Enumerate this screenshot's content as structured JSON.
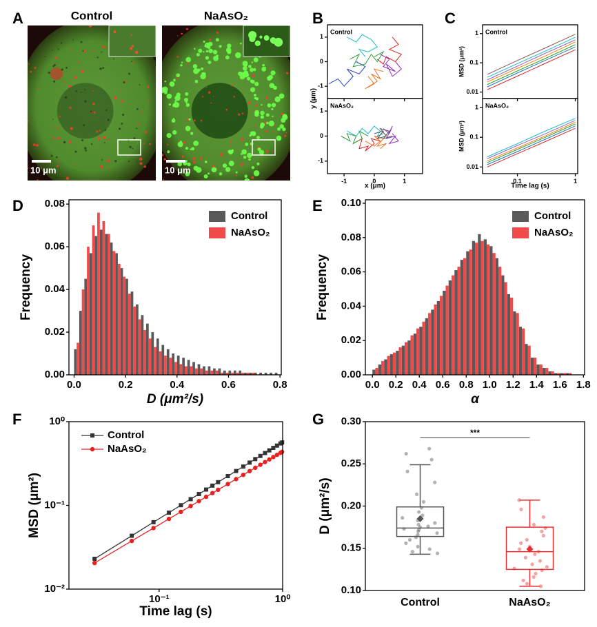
{
  "chart_data": [
    {
      "type": "image",
      "panel_label": "A",
      "images": [
        {
          "title": "Control",
          "scale_bar": "10 μm"
        },
        {
          "title": "NaAsO₂",
          "scale_bar": "10 μm"
        }
      ]
    },
    {
      "type": "trajectory",
      "panel_label": "B",
      "x_label": "x (μm)",
      "y_label": "y (μm)",
      "xlim": [
        -1.55,
        1.6
      ],
      "ylim": [
        -1.5,
        1.5
      ],
      "xticks": [
        -1,
        0,
        1
      ],
      "yticks": [
        -1,
        0,
        1
      ],
      "panels": [
        {
          "title": "Control",
          "series": [
            {
              "color": "#17becf",
              "x": [
                -0.9,
                -0.6,
                -0.4,
                -0.1,
                0.1,
                -0.2,
                -0.5,
                -0.3
              ],
              "y": [
                1.0,
                0.8,
                1.1,
                0.9,
                0.6,
                0.4,
                0.5,
                0.2
              ]
            },
            {
              "color": "#1f3fbf",
              "x": [
                -1.5,
                -1.2,
                -1.0,
                -0.7,
                -0.9,
                -0.5,
                -0.3,
                -0.6
              ],
              "y": [
                -0.9,
                -0.7,
                -1.0,
                -0.6,
                -0.3,
                -0.5,
                -0.2,
                0.0
              ]
            },
            {
              "color": "#e02020",
              "x": [
                0.6,
                0.8,
                0.5,
                0.9,
                0.7,
                0.4,
                0.3,
                0.1
              ],
              "y": [
                1.0,
                0.7,
                0.5,
                0.3,
                0.0,
                0.2,
                -0.1,
                0.1
              ]
            },
            {
              "color": "#f07020",
              "x": [
                -0.2,
                0.0,
                -0.3,
                0.1,
                -0.1,
                0.2,
                0.0,
                0.3
              ],
              "y": [
                -0.6,
                -0.9,
                -1.1,
                -0.8,
                -0.5,
                -0.7,
                -0.3,
                -0.4
              ]
            },
            {
              "color": "#9030c0",
              "x": [
                0.2,
                0.5,
                0.3,
                0.7,
                0.4,
                0.6,
                0.9,
                0.7
              ],
              "y": [
                0.3,
                0.1,
                -0.2,
                -0.4,
                -0.1,
                -0.6,
                -0.3,
                0.0
              ]
            },
            {
              "color": "#2a9d3a",
              "x": [
                -0.8,
                -0.5,
                -0.7,
                -0.3,
                -0.1,
                0.1,
                0.3,
                0.0
              ],
              "y": [
                0.1,
                0.3,
                -0.2,
                -0.1,
                0.3,
                0.0,
                0.4,
                0.2
              ]
            }
          ]
        },
        {
          "title": "NaAsO₂",
          "series": [
            {
              "color": "#17becf",
              "x": [
                -0.9,
                -0.6,
                -0.4,
                -0.2,
                0.0,
                0.2,
                0.1,
                0.3
              ],
              "y": [
                0.2,
                0.0,
                0.3,
                0.1,
                0.4,
                0.2,
                0.0,
                0.1
              ]
            },
            {
              "color": "#e02020",
              "x": [
                -0.7,
                -0.4,
                -0.5,
                -0.2,
                -0.3,
                0.0,
                -0.1,
                0.2
              ],
              "y": [
                -0.3,
                -0.1,
                -0.5,
                -0.4,
                -0.6,
                -0.3,
                -0.1,
                -0.2
              ]
            },
            {
              "color": "#9030c0",
              "x": [
                0.3,
                0.5,
                0.6,
                0.4,
                0.7,
                0.5,
                0.8,
                0.6
              ],
              "y": [
                0.3,
                0.1,
                0.4,
                -0.1,
                0.0,
                -0.3,
                -0.2,
                0.1
              ]
            },
            {
              "color": "#f07020",
              "x": [
                -0.3,
                0.0,
                0.2,
                0.0,
                0.3,
                0.1,
                0.4,
                0.2
              ],
              "y": [
                -0.2,
                -0.4,
                -0.2,
                0.0,
                -0.1,
                -0.4,
                -0.3,
                -0.5
              ]
            },
            {
              "color": "#2a9d3a",
              "x": [
                -1.1,
                -0.8,
                -0.9,
                -0.6,
                -0.7,
                -0.4,
                -0.5,
                -0.2
              ],
              "y": [
                0.0,
                -0.2,
                0.1,
                0.0,
                -0.3,
                -0.1,
                0.2,
                0.0
              ]
            },
            {
              "color": "#555555",
              "x": [
                0.0,
                0.3,
                0.1,
                0.4,
                0.2,
                0.5,
                0.3,
                0.6
              ],
              "y": [
                0.1,
                0.2,
                -0.1,
                0.0,
                0.3,
                0.2,
                -0.1,
                0.0
              ]
            }
          ]
        }
      ]
    },
    {
      "type": "multiline",
      "panel_label": "C",
      "x_label": "Time lag (s)",
      "y_label": "MSD (μm²)",
      "log_x": true,
      "log_y": true,
      "xlim": [
        0.025,
        1.1
      ],
      "ylim": [
        0.006,
        2
      ],
      "xticks": [
        0.1,
        1
      ],
      "yticks": [
        0.01,
        0.1,
        1
      ],
      "x": [
        0.03,
        0.1,
        0.3,
        1
      ],
      "panels": [
        {
          "title": "Control",
          "series": [
            {
              "color": "#d62728",
              "values": [
                0.012,
                0.035,
                0.095,
                0.28
              ]
            },
            {
              "color": "#1f77b4",
              "values": [
                0.015,
                0.045,
                0.12,
                0.35
              ]
            },
            {
              "color": "#2ca02c",
              "values": [
                0.018,
                0.053,
                0.14,
                0.42
              ]
            },
            {
              "color": "#ff7f0e",
              "values": [
                0.022,
                0.065,
                0.17,
                0.52
              ]
            },
            {
              "color": "#9467bd",
              "values": [
                0.026,
                0.077,
                0.21,
                0.61
              ]
            },
            {
              "color": "#17becf",
              "values": [
                0.032,
                0.094,
                0.25,
                0.75
              ]
            },
            {
              "color": "#8c564b",
              "values": [
                0.04,
                0.12,
                0.32,
                0.95
              ]
            }
          ]
        },
        {
          "title": "NaAsO₂",
          "series": [
            {
              "color": "#d62728",
              "values": [
                0.01,
                0.028,
                0.071,
                0.2
              ]
            },
            {
              "color": "#1f77b4",
              "values": [
                0.012,
                0.033,
                0.085,
                0.24
              ]
            },
            {
              "color": "#2ca02c",
              "values": [
                0.014,
                0.039,
                0.099,
                0.28
              ]
            },
            {
              "color": "#ff7f0e",
              "values": [
                0.016,
                0.044,
                0.11,
                0.32
              ]
            },
            {
              "color": "#9467bd",
              "values": [
                0.019,
                0.053,
                0.13,
                0.37
              ]
            },
            {
              "color": "#17becf",
              "values": [
                0.022,
                0.061,
                0.16,
                0.43
              ]
            }
          ]
        }
      ]
    },
    {
      "type": "histogram",
      "panel_label": "D",
      "x_label": "D (μm²/s)",
      "y_label": "Frequency",
      "legend": "upper right",
      "xlim": [
        -0.02,
        0.805
      ],
      "ylim": [
        0,
        0.082
      ],
      "xticks": [
        {
          "value": 0,
          "label": "0.0"
        },
        0.2,
        0.4,
        0.6,
        0.8
      ],
      "yticks": [
        {
          "value": 0,
          "label": "0.00"
        },
        0.02,
        0.04,
        0.06,
        0.08
      ],
      "bins": [
        0,
        0.02,
        0.04,
        0.06,
        0.08,
        0.1,
        0.12,
        0.14,
        0.16,
        0.18,
        0.2,
        0.22,
        0.24,
        0.26,
        0.28,
        0.3,
        0.32,
        0.34,
        0.36,
        0.38,
        0.4,
        0.42,
        0.44,
        0.46,
        0.48,
        0.5,
        0.52,
        0.54,
        0.56,
        0.58,
        0.6,
        0.62,
        0.64,
        0.66,
        0.68,
        0.7,
        0.72,
        0.74,
        0.76,
        0.78,
        0.8
      ],
      "series": [
        {
          "name": "Control",
          "color": "#5a5a5a",
          "values": [
            0.012,
            0.03,
            0.045,
            0.057,
            0.065,
            0.068,
            0.066,
            0.062,
            0.057,
            0.05,
            0.045,
            0.039,
            0.033,
            0.028,
            0.024,
            0.02,
            0.017,
            0.014,
            0.012,
            0.01,
            0.009,
            0.008,
            0.007,
            0.006,
            0.005,
            0.004,
            0.004,
            0.003,
            0.003,
            0.002,
            0.002,
            0.002,
            0.002,
            0.001,
            0.001,
            0.001,
            0.001,
            0.001,
            0.001,
            0.001
          ]
        },
        {
          "name": "NaAsO₂",
          "color": "#f04a4a",
          "values": [
            0.015,
            0.04,
            0.06,
            0.07,
            0.076,
            0.072,
            0.066,
            0.058,
            0.052,
            0.046,
            0.038,
            0.032,
            0.026,
            0.021,
            0.017,
            0.013,
            0.011,
            0.009,
            0.008,
            0.006,
            0.005,
            0.004,
            0.004,
            0.003,
            0.003,
            0.002,
            0.002,
            0.002,
            0.001,
            0.001,
            0.001,
            0.001,
            0.001,
            0.001,
            0.001,
            0,
            0,
            0,
            0,
            0
          ]
        }
      ]
    },
    {
      "type": "histogram",
      "panel_label": "E",
      "x_label": "α",
      "y_label": "Frequency",
      "legend": "upper right",
      "xlim": [
        -0.06,
        1.81
      ],
      "ylim": [
        0,
        0.102
      ],
      "xticks": [
        {
          "value": 0,
          "label": "0.0"
        },
        0.2,
        0.4,
        0.6,
        0.8,
        {
          "value": 1,
          "label": "1.0"
        },
        1.2,
        1.4,
        1.6,
        1.8
      ],
      "yticks": [
        {
          "value": 0,
          "label": "0.00"
        },
        0.02,
        0.04,
        0.06,
        0.08,
        {
          "value": 0.1,
          "label": "0.10"
        }
      ],
      "bins": [
        0,
        0.05,
        0.1,
        0.15,
        0.2,
        0.25,
        0.3,
        0.35,
        0.4,
        0.45,
        0.5,
        0.55,
        0.6,
        0.65,
        0.7,
        0.75,
        0.8,
        0.85,
        0.9,
        0.95,
        1,
        1.05,
        1.1,
        1.15,
        1.2,
        1.25,
        1.3,
        1.35,
        1.4,
        1.45,
        1.5,
        1.55,
        1.6,
        1.65,
        1.7
      ],
      "series": [
        {
          "name": "Control",
          "color": "#5a5a5a",
          "values": [
            0.003,
            0.006,
            0.009,
            0.012,
            0.014,
            0.017,
            0.02,
            0.024,
            0.028,
            0.033,
            0.038,
            0.043,
            0.049,
            0.055,
            0.061,
            0.067,
            0.072,
            0.078,
            0.082,
            0.079,
            0.075,
            0.068,
            0.058,
            0.047,
            0.037,
            0.028,
            0.018,
            0.01,
            0.006,
            0.004,
            0.002,
            0.001,
            0.001,
            0.001
          ]
        },
        {
          "name": "NaAsO₂",
          "color": "#f04a4a",
          "values": [
            0.004,
            0.008,
            0.011,
            0.013,
            0.016,
            0.019,
            0.023,
            0.027,
            0.031,
            0.036,
            0.041,
            0.046,
            0.052,
            0.058,
            0.063,
            0.068,
            0.073,
            0.077,
            0.078,
            0.076,
            0.071,
            0.063,
            0.054,
            0.045,
            0.036,
            0.027,
            0.017,
            0.01,
            0.006,
            0.004,
            0.002,
            0.001,
            0.001,
            0.001
          ]
        }
      ]
    },
    {
      "type": "line",
      "panel_label": "F",
      "x_label": "Time lag (s)",
      "y_label": "MSD (μm²)",
      "legend": "upper left",
      "log_x": true,
      "log_y": true,
      "xlim": [
        0.0186,
        1
      ],
      "ylim": [
        0.01,
        1
      ],
      "xticks": [
        {
          "value": 0.1,
          "label": "10⁻¹"
        },
        {
          "value": 1,
          "label": "10⁰"
        }
      ],
      "yticks": [
        {
          "value": 0.01,
          "label": "10⁻²"
        },
        {
          "value": 0.1,
          "label": "10⁻¹"
        },
        {
          "value": 1,
          "label": "10⁰"
        }
      ],
      "x": [
        0.03,
        0.06,
        0.09,
        0.12,
        0.15,
        0.18,
        0.21,
        0.24,
        0.27,
        0.3,
        0.36,
        0.42,
        0.48,
        0.54,
        0.6,
        0.66,
        0.72,
        0.78,
        0.84,
        0.9,
        0.96,
        0.99
      ],
      "series": [
        {
          "name": "Control",
          "color": "#333333",
          "marker": "square",
          "values": [
            0.023,
            0.0434,
            0.063,
            0.0819,
            0.1005,
            0.1187,
            0.1366,
            0.1545,
            0.1721,
            0.1894,
            0.2238,
            0.2576,
            0.2911,
            0.3243,
            0.357,
            0.3895,
            0.4219,
            0.4542,
            0.4862,
            0.5178,
            0.5491,
            0.5648
          ]
        },
        {
          "name": "NaAsO₂",
          "color": "#e82020",
          "marker": "circle",
          "values": [
            0.0205,
            0.0376,
            0.0536,
            0.069,
            0.0838,
            0.0983,
            0.1125,
            0.1265,
            0.1402,
            0.1536,
            0.1801,
            0.206,
            0.2316,
            0.2569,
            0.2814,
            0.3058,
            0.3299,
            0.3542,
            0.378,
            0.4014,
            0.4246,
            0.4362
          ]
        }
      ]
    },
    {
      "type": "box",
      "panel_label": "G",
      "y_label": "D (μm²/s)",
      "annotation": "***",
      "ylim": [
        0.1,
        0.3
      ],
      "yticks": [
        {
          "value": 0.1,
          "label": "0.10"
        },
        0.15,
        {
          "value": 0.2,
          "label": "0.20"
        },
        0.25,
        {
          "value": 0.3,
          "label": "0.30"
        }
      ],
      "categories": [
        "Control",
        "NaAsO₂"
      ],
      "boxes": [
        {
          "color": "#555555",
          "whisker_low": 0.143,
          "q1": 0.164,
          "median": 0.174,
          "q3": 0.199,
          "whisker_high": 0.249,
          "mean": 0.185,
          "points": [
            0.268,
            0.262,
            0.255,
            0.241,
            0.228,
            0.214,
            0.205,
            0.198,
            0.193,
            0.189,
            0.186,
            0.183,
            0.18,
            0.178,
            0.176,
            0.175,
            0.173,
            0.172,
            0.17,
            0.168,
            0.166,
            0.163,
            0.16,
            0.156,
            0.152,
            0.149,
            0.146,
            0.144
          ]
        },
        {
          "color": "#e83030",
          "whisker_low": 0.105,
          "q1": 0.125,
          "median": 0.146,
          "q3": 0.175,
          "whisker_high": 0.207,
          "mean": 0.149,
          "points": [
            0.207,
            0.196,
            0.187,
            0.178,
            0.174,
            0.17,
            0.165,
            0.16,
            0.156,
            0.152,
            0.149,
            0.146,
            0.143,
            0.139,
            0.135,
            0.131,
            0.128,
            0.126,
            0.124,
            0.12,
            0.116,
            0.112,
            0.108,
            0.105
          ]
        }
      ]
    }
  ]
}
